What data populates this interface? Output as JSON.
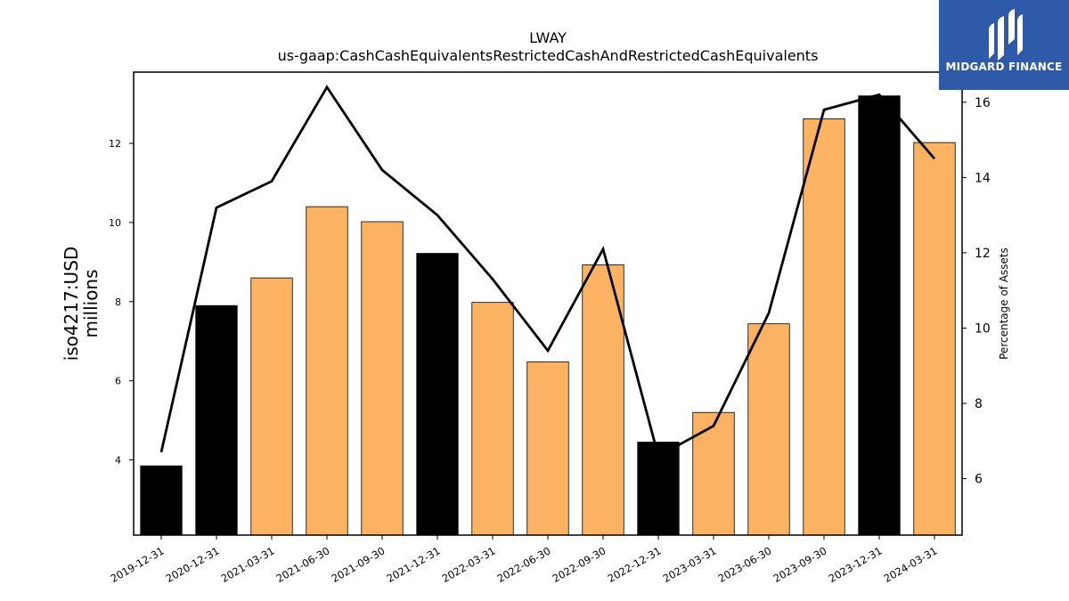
{
  "chart_data": {
    "type": "bar",
    "title": "LWAY",
    "subtitle": "us-gaap:CashCashEquivalentsRestrictedCashAndRestrictedCashEquivalents",
    "ylabel": "iso4217:USD\nmillions",
    "ylabel_right": "Percentage of Assets",
    "ylim": [
      2.1,
      13.8
    ],
    "ylim_right": [
      4.5,
      16.8
    ],
    "yticks": [
      4,
      6,
      8,
      10,
      12
    ],
    "yticks_right": [
      6,
      8,
      10,
      12,
      14,
      16
    ],
    "categories": [
      "2019-12-31",
      "2020-12-31",
      "2021-03-31",
      "2021-06-30",
      "2021-09-30",
      "2021-12-31",
      "2022-03-31",
      "2022-06-30",
      "2022-09-30",
      "2022-12-31",
      "2023-03-31",
      "2023-06-30",
      "2023-09-30",
      "2023-12-31",
      "2024-03-31"
    ],
    "series": [
      {
        "type": "bar",
        "values": [
          3.85,
          7.9,
          8.6,
          10.4,
          10.02,
          9.22,
          7.98,
          6.48,
          8.93,
          4.45,
          5.2,
          7.44,
          12.62,
          13.2,
          12.02
        ],
        "colors": [
          "#000000",
          "#000000",
          "#fbb262",
          "#fbb262",
          "#fbb262",
          "#000000",
          "#fbb262",
          "#fbb262",
          "#fbb262",
          "#000000",
          "#fbb262",
          "#fbb262",
          "#fbb262",
          "#000000",
          "#fbb262"
        ]
      },
      {
        "type": "line",
        "axis": "right",
        "values": [
          6.7,
          13.2,
          13.9,
          16.4,
          14.2,
          13.0,
          11.3,
          9.4,
          12.1,
          6.6,
          7.4,
          10.4,
          15.8,
          16.2,
          14.5
        ],
        "color": "#000000"
      }
    ],
    "grid": false,
    "legend": "none"
  },
  "logo": {
    "text": "MIDGARD FINANCE",
    "background": "#2e5aa9"
  }
}
